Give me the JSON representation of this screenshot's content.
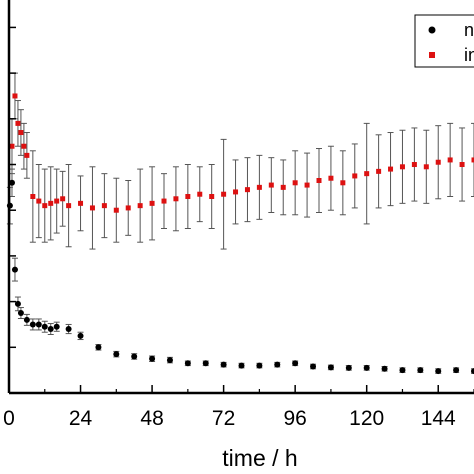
{
  "chart_data": {
    "type": "scatter",
    "xlabel": "time / h",
    "ylabel": "",
    "xlim": [
      0,
      156
    ],
    "ylim": [
      0,
      8.6
    ],
    "x_ticks": [
      "0",
      "24",
      "48",
      "72",
      "96",
      "120",
      "144"
    ],
    "grid": false,
    "legend_position": "top-right",
    "series": [
      {
        "name": "n",
        "color": "#000000",
        "marker": "circle",
        "x": [
          0.3,
          1,
          2,
          3,
          4,
          6,
          8,
          10,
          12,
          14,
          16,
          20,
          24,
          30,
          36,
          42,
          48,
          54,
          60,
          66,
          72,
          78,
          84,
          90,
          96,
          102,
          108,
          114,
          120,
          126,
          132,
          138,
          144,
          150,
          156
        ],
        "y": [
          4.1,
          4.6,
          2.7,
          1.95,
          1.75,
          1.6,
          1.5,
          1.5,
          1.45,
          1.4,
          1.45,
          1.4,
          1.25,
          1.0,
          0.85,
          0.8,
          0.75,
          0.72,
          0.65,
          0.65,
          0.62,
          0.6,
          0.6,
          0.62,
          0.65,
          0.58,
          0.56,
          0.55,
          0.55,
          0.53,
          0.5,
          0.5,
          0.48,
          0.5,
          0.48
        ],
        "error": [
          0.4,
          0.3,
          0.25,
          0.15,
          0.12,
          0.12,
          0.12,
          0.12,
          0.12,
          0.12,
          0.1,
          0.1,
          0.08,
          0.06,
          0.06,
          0.06,
          0.06,
          0.06,
          0.05,
          0.05,
          0.05,
          0.05,
          0.05,
          0.05,
          0.05,
          0.05,
          0.05,
          0.05,
          0.05,
          0.05,
          0.05,
          0.05,
          0.05,
          0.05,
          0.05
        ]
      },
      {
        "name": "in",
        "color": "#dd1111",
        "marker": "square",
        "x": [
          1,
          2,
          3,
          4,
          5,
          6,
          8,
          10,
          12,
          14,
          16,
          18,
          20,
          24,
          28,
          32,
          36,
          40,
          44,
          48,
          52,
          56,
          60,
          64,
          68,
          72,
          76,
          80,
          84,
          88,
          92,
          96,
          100,
          104,
          108,
          112,
          116,
          120,
          124,
          128,
          132,
          136,
          140,
          144,
          148,
          152,
          156
        ],
        "y": [
          5.4,
          6.5,
          5.9,
          5.7,
          5.4,
          5.2,
          4.3,
          4.2,
          4.1,
          4.15,
          4.2,
          4.25,
          4.1,
          4.15,
          4.05,
          4.1,
          4.0,
          4.05,
          4.1,
          4.15,
          4.2,
          4.25,
          4.3,
          4.35,
          4.3,
          4.35,
          4.4,
          4.45,
          4.5,
          4.55,
          4.5,
          4.6,
          4.55,
          4.65,
          4.7,
          4.6,
          4.75,
          4.8,
          4.85,
          4.9,
          4.95,
          5.0,
          4.95,
          5.05,
          5.1,
          5.0,
          5.1
        ],
        "error": [
          0.6,
          0.5,
          0.5,
          0.5,
          0.5,
          0.5,
          1.0,
          0.8,
          0.8,
          0.8,
          0.7,
          0.6,
          0.9,
          0.6,
          0.9,
          0.7,
          0.7,
          0.6,
          0.8,
          0.8,
          0.6,
          0.7,
          0.7,
          0.6,
          0.7,
          1.2,
          0.7,
          0.7,
          0.7,
          0.6,
          0.6,
          0.7,
          0.7,
          0.7,
          0.7,
          0.7,
          0.7,
          1.1,
          0.8,
          0.8,
          0.8,
          0.8,
          0.8,
          0.8,
          0.8,
          0.8,
          0.8
        ]
      }
    ]
  }
}
